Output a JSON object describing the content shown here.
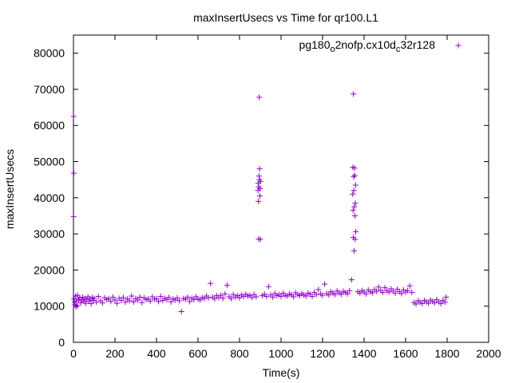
{
  "chart_data": {
    "type": "scatter",
    "title": "maxInsertUsecs vs Time for qr100.L1",
    "xlabel": "Time(s)",
    "ylabel": "maxInsertUsecs",
    "xlim": [
      0,
      2000
    ],
    "ylim": [
      0,
      85000
    ],
    "xticks": [
      0,
      200,
      400,
      600,
      800,
      1000,
      1200,
      1400,
      1600,
      1800,
      2000
    ],
    "yticks": [
      0,
      10000,
      20000,
      30000,
      40000,
      50000,
      60000,
      70000,
      80000
    ],
    "xtick_labels": [
      "0",
      "200",
      "400",
      "600",
      "800",
      "1000",
      "1200",
      "1400",
      "1600",
      "1800",
      "2000"
    ],
    "ytick_labels": [
      "0",
      "10000",
      "20000",
      "30000",
      "40000",
      "50000",
      "60000",
      "70000",
      "80000"
    ],
    "grid": false,
    "legend_position": "top-right",
    "color": "#9400d3",
    "series": [
      {
        "name": "pg180_o2nofp.cx10d_c32r128",
        "legend_parts": [
          "pg180",
          "o",
          "2nofp.cx10d",
          "c",
          "32r128"
        ],
        "marker": "plus",
        "points": [
          [
            1,
            62500
          ],
          [
            2,
            46800
          ],
          [
            1,
            34800
          ],
          [
            3,
            12000
          ],
          [
            5,
            11200
          ],
          [
            8,
            10500
          ],
          [
            10,
            12800
          ],
          [
            12,
            9800
          ],
          [
            15,
            11500
          ],
          [
            18,
            10200
          ],
          [
            20,
            13000
          ],
          [
            25,
            11800
          ],
          [
            30,
            12300
          ],
          [
            35,
            10900
          ],
          [
            40,
            11700
          ],
          [
            45,
            12500
          ],
          [
            50,
            11300
          ],
          [
            55,
            12100
          ],
          [
            60,
            10800
          ],
          [
            65,
            11900
          ],
          [
            70,
            12600
          ],
          [
            75,
            11400
          ],
          [
            80,
            12000
          ],
          [
            85,
            10700
          ],
          [
            90,
            12400
          ],
          [
            95,
            11600
          ],
          [
            100,
            12200
          ],
          [
            110,
            11100
          ],
          [
            120,
            12700
          ],
          [
            130,
            11500
          ],
          [
            140,
            10900
          ],
          [
            150,
            12300
          ],
          [
            160,
            11800
          ],
          [
            170,
            12100
          ],
          [
            180,
            11300
          ],
          [
            190,
            12500
          ],
          [
            200,
            11700
          ],
          [
            210,
            10800
          ],
          [
            220,
            12200
          ],
          [
            230,
            11600
          ],
          [
            240,
            12400
          ],
          [
            250,
            11100
          ],
          [
            260,
            12000
          ],
          [
            270,
            11500
          ],
          [
            280,
            12800
          ],
          [
            290,
            11200
          ],
          [
            300,
            12100
          ],
          [
            310,
            11700
          ],
          [
            320,
            12500
          ],
          [
            330,
            11000
          ],
          [
            340,
            12300
          ],
          [
            350,
            11800
          ],
          [
            360,
            12000
          ],
          [
            370,
            11400
          ],
          [
            380,
            12600
          ],
          [
            390,
            11900
          ],
          [
            400,
            12100
          ],
          [
            410,
            11300
          ],
          [
            420,
            12700
          ],
          [
            430,
            11600
          ],
          [
            440,
            12200
          ],
          [
            450,
            11800
          ],
          [
            460,
            12400
          ],
          [
            470,
            11200
          ],
          [
            480,
            12000
          ],
          [
            490,
            11700
          ],
          [
            500,
            12300
          ],
          [
            510,
            11500
          ],
          [
            520,
            8500
          ],
          [
            530,
            12100
          ],
          [
            540,
            11900
          ],
          [
            550,
            12500
          ],
          [
            560,
            11300
          ],
          [
            570,
            12200
          ],
          [
            580,
            11800
          ],
          [
            590,
            12600
          ],
          [
            600,
            12000
          ],
          [
            610,
            11700
          ],
          [
            620,
            12400
          ],
          [
            630,
            12100
          ],
          [
            640,
            12800
          ],
          [
            650,
            12300
          ],
          [
            660,
            16300
          ],
          [
            670,
            12500
          ],
          [
            680,
            12000
          ],
          [
            690,
            12900
          ],
          [
            700,
            12400
          ],
          [
            710,
            13000
          ],
          [
            720,
            12200
          ],
          [
            730,
            13400
          ],
          [
            740,
            15800
          ],
          [
            750,
            12600
          ],
          [
            760,
            12100
          ],
          [
            770,
            13200
          ],
          [
            780,
            12500
          ],
          [
            790,
            12900
          ],
          [
            800,
            12300
          ],
          [
            810,
            13100
          ],
          [
            820,
            12700
          ],
          [
            830,
            13300
          ],
          [
            840,
            12800
          ],
          [
            850,
            13000
          ],
          [
            860,
            12400
          ],
          [
            870,
            13200
          ],
          [
            880,
            12600
          ],
          [
            889,
            42000
          ],
          [
            890,
            44000
          ],
          [
            891,
            39000
          ],
          [
            892,
            28600
          ],
          [
            893,
            43000
          ],
          [
            894,
            46000
          ],
          [
            895,
            67800
          ],
          [
            896,
            45000
          ],
          [
            897,
            48000
          ],
          [
            898,
            40500
          ],
          [
            899,
            42500
          ],
          [
            900,
            28500
          ],
          [
            901,
            44500
          ],
          [
            910,
            12900
          ],
          [
            920,
            13300
          ],
          [
            930,
            12700
          ],
          [
            940,
            15400
          ],
          [
            950,
            13100
          ],
          [
            960,
            12500
          ],
          [
            970,
            13500
          ],
          [
            980,
            12900
          ],
          [
            990,
            13200
          ],
          [
            1000,
            12700
          ],
          [
            1010,
            13600
          ],
          [
            1020,
            13000
          ],
          [
            1030,
            12800
          ],
          [
            1040,
            13400
          ],
          [
            1050,
            13100
          ],
          [
            1060,
            12600
          ],
          [
            1070,
            13700
          ],
          [
            1080,
            13200
          ],
          [
            1090,
            12900
          ],
          [
            1100,
            13500
          ],
          [
            1110,
            13100
          ],
          [
            1120,
            12800
          ],
          [
            1130,
            13600
          ],
          [
            1140,
            13300
          ],
          [
            1150,
            12700
          ],
          [
            1160,
            13800
          ],
          [
            1170,
            13200
          ],
          [
            1180,
            14600
          ],
          [
            1190,
            13400
          ],
          [
            1200,
            13000
          ],
          [
            1210,
            16100
          ],
          [
            1220,
            13500
          ],
          [
            1230,
            13100
          ],
          [
            1240,
            14000
          ],
          [
            1250,
            13600
          ],
          [
            1260,
            13200
          ],
          [
            1270,
            14200
          ],
          [
            1280,
            13700
          ],
          [
            1290,
            13300
          ],
          [
            1300,
            14100
          ],
          [
            1310,
            13800
          ],
          [
            1320,
            13400
          ],
          [
            1330,
            14300
          ],
          [
            1340,
            17300
          ],
          [
            1345,
            41000
          ],
          [
            1346,
            48400
          ],
          [
            1347,
            36500
          ],
          [
            1348,
            29000
          ],
          [
            1349,
            68700
          ],
          [
            1350,
            45800
          ],
          [
            1351,
            42000
          ],
          [
            1352,
            25300
          ],
          [
            1353,
            37500
          ],
          [
            1354,
            48200
          ],
          [
            1355,
            46200
          ],
          [
            1356,
            35000
          ],
          [
            1357,
            28500
          ],
          [
            1358,
            38500
          ],
          [
            1359,
            43500
          ],
          [
            1360,
            30600
          ],
          [
            1370,
            14000
          ],
          [
            1380,
            13600
          ],
          [
            1390,
            14300
          ],
          [
            1400,
            13900
          ],
          [
            1410,
            13400
          ],
          [
            1420,
            14500
          ],
          [
            1430,
            14000
          ],
          [
            1440,
            13700
          ],
          [
            1450,
            14600
          ],
          [
            1460,
            14100
          ],
          [
            1470,
            15300
          ],
          [
            1480,
            14400
          ],
          [
            1490,
            13800
          ],
          [
            1500,
            15100
          ],
          [
            1510,
            14300
          ],
          [
            1520,
            13900
          ],
          [
            1530,
            14800
          ],
          [
            1540,
            14200
          ],
          [
            1550,
            13600
          ],
          [
            1560,
            14700
          ],
          [
            1570,
            14000
          ],
          [
            1580,
            13500
          ],
          [
            1590,
            14500
          ],
          [
            1600,
            13900
          ],
          [
            1610,
            14300
          ],
          [
            1620,
            15600
          ],
          [
            1630,
            13800
          ],
          [
            1640,
            11000
          ],
          [
            1650,
            10600
          ],
          [
            1660,
            11500
          ],
          [
            1670,
            11100
          ],
          [
            1680,
            10700
          ],
          [
            1690,
            11600
          ],
          [
            1700,
            11200
          ],
          [
            1710,
            10800
          ],
          [
            1720,
            11700
          ],
          [
            1730,
            11300
          ],
          [
            1740,
            10900
          ],
          [
            1750,
            11800
          ],
          [
            1760,
            11200
          ],
          [
            1770,
            10700
          ],
          [
            1780,
            11600
          ],
          [
            1790,
            11100
          ],
          [
            1795,
            12500
          ]
        ]
      }
    ]
  }
}
